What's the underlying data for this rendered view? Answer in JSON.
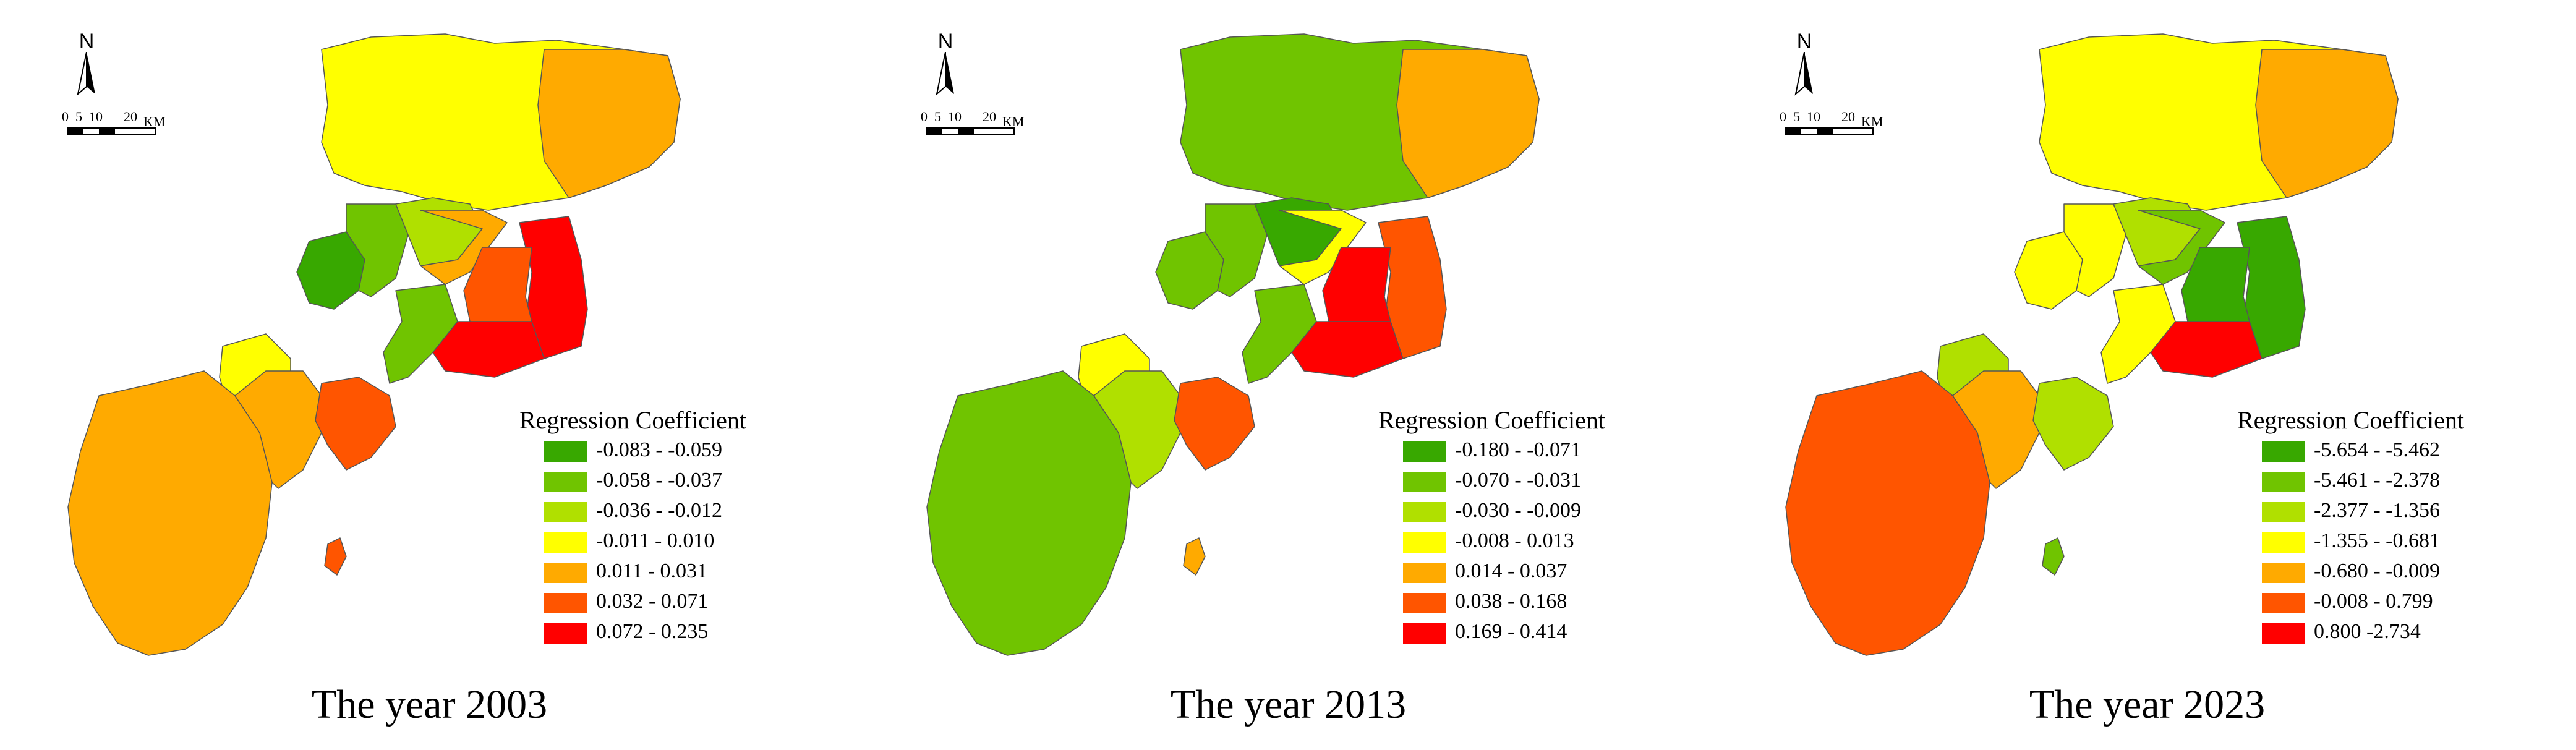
{
  "panels": [
    {
      "year_label": "The year 2003",
      "north_label": "N",
      "scale": {
        "ticks": [
          "0",
          "5",
          "10",
          "20"
        ],
        "unit": "KM"
      },
      "legend": {
        "title": "Regression Coefficient",
        "classes": [
          {
            "range": "-0.083 - -0.059",
            "color": "#38a800"
          },
          {
            "range": "-0.058 - -0.037",
            "color": "#70c400"
          },
          {
            "range": "-0.036 - -0.012",
            "color": "#b0e000"
          },
          {
            "range": "-0.011 - 0.010",
            "color": "#ffff00"
          },
          {
            "range": "0.011 - 0.031",
            "color": "#ffaa00"
          },
          {
            "range": "0.032 - 0.071",
            "color": "#ff5500"
          },
          {
            "range": "0.072 - 0.235",
            "color": "#ff0000"
          }
        ]
      },
      "region_classes": {
        "north_block": 3,
        "central_ne": 4,
        "west_coast": 0,
        "west_inner": 1,
        "central_mid": 2,
        "center": 4,
        "east_coast": 6,
        "east_inner": 5,
        "south_tip": 6,
        "urban_core": 1,
        "sw_north": 3,
        "sw_main": 4,
        "sw_east_peninsula": 5,
        "island_south": 5,
        "sw_inner": 4
      }
    },
    {
      "year_label": "The year 2013",
      "north_label": "N",
      "scale": {
        "ticks": [
          "0",
          "5",
          "10",
          "20"
        ],
        "unit": "KM"
      },
      "legend": {
        "title": "Regression Coefficient",
        "classes": [
          {
            "range": "-0.180 - -0.071",
            "color": "#38a800"
          },
          {
            "range": "-0.070 - -0.031",
            "color": "#70c400"
          },
          {
            "range": "-0.030 - -0.009",
            "color": "#b0e000"
          },
          {
            "range": "-0.008 - 0.013",
            "color": "#ffff00"
          },
          {
            "range": "0.014 - 0.037",
            "color": "#ffaa00"
          },
          {
            "range": "0.038 - 0.168",
            "color": "#ff5500"
          },
          {
            "range": "0.169 - 0.414",
            "color": "#ff0000"
          }
        ]
      },
      "region_classes": {
        "north_block": 1,
        "central_ne": 4,
        "west_coast": 1,
        "west_inner": 1,
        "central_mid": 0,
        "center": 3,
        "east_coast": 5,
        "east_inner": 6,
        "south_tip": 6,
        "urban_core": 1,
        "sw_north": 3,
        "sw_main": 1,
        "sw_east_peninsula": 5,
        "island_south": 4,
        "sw_inner": 2
      }
    },
    {
      "year_label": "The year 2023",
      "north_label": "N",
      "scale": {
        "ticks": [
          "0",
          "5",
          "10",
          "20"
        ],
        "unit": "KM"
      },
      "legend": {
        "title": "Regression Coefficient",
        "classes": [
          {
            "range": "-5.654 - -5.462",
            "color": "#38a800"
          },
          {
            "range": "-5.461 - -2.378",
            "color": "#70c400"
          },
          {
            "range": "-2.377 - -1.356",
            "color": "#b0e000"
          },
          {
            "range": "-1.355 - -0.681",
            "color": "#ffff00"
          },
          {
            "range": "-0.680 - -0.009",
            "color": "#ffaa00"
          },
          {
            "range": "-0.008 - 0.799",
            "color": "#ff5500"
          },
          {
            "range": "0.800 -2.734",
            "color": "#ff0000"
          }
        ]
      },
      "region_classes": {
        "north_block": 3,
        "central_ne": 4,
        "west_coast": 3,
        "west_inner": 3,
        "central_mid": 2,
        "center": 1,
        "east_coast": 0,
        "east_inner": 0,
        "south_tip": 6,
        "urban_core": 3,
        "sw_north": 2,
        "sw_main": 5,
        "sw_east_peninsula": 2,
        "island_south": 1,
        "sw_inner": 4
      }
    }
  ]
}
